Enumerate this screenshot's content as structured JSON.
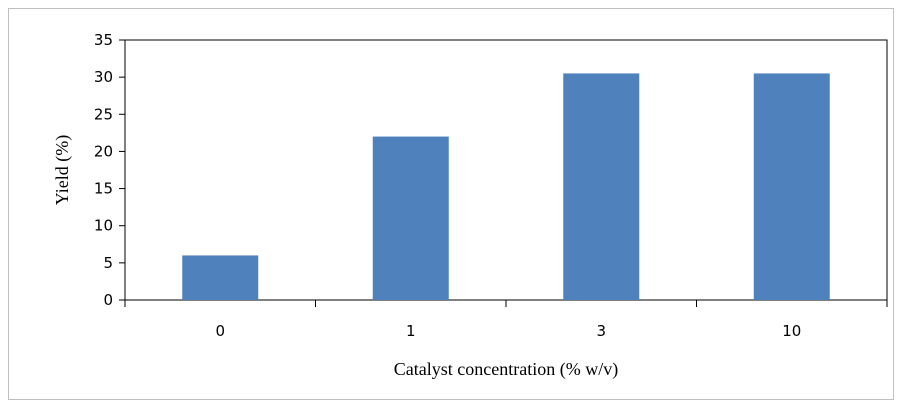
{
  "chart_data": {
    "type": "bar",
    "title": "",
    "xlabel": "Catalyst concentration (% w/v)",
    "ylabel": "Yield (%)",
    "categories": [
      "0",
      "1",
      "3",
      "10"
    ],
    "values": [
      6,
      22,
      30.5,
      30.5
    ],
    "ylim": [
      0,
      35
    ],
    "yticks": [
      "0",
      "5",
      "10",
      "15",
      "20",
      "25",
      "30",
      "35"
    ],
    "grid": false,
    "legend": "none",
    "bar_color": "#4f81bd",
    "axis_color": "#000000",
    "frame_color": "#bfbfbf"
  }
}
